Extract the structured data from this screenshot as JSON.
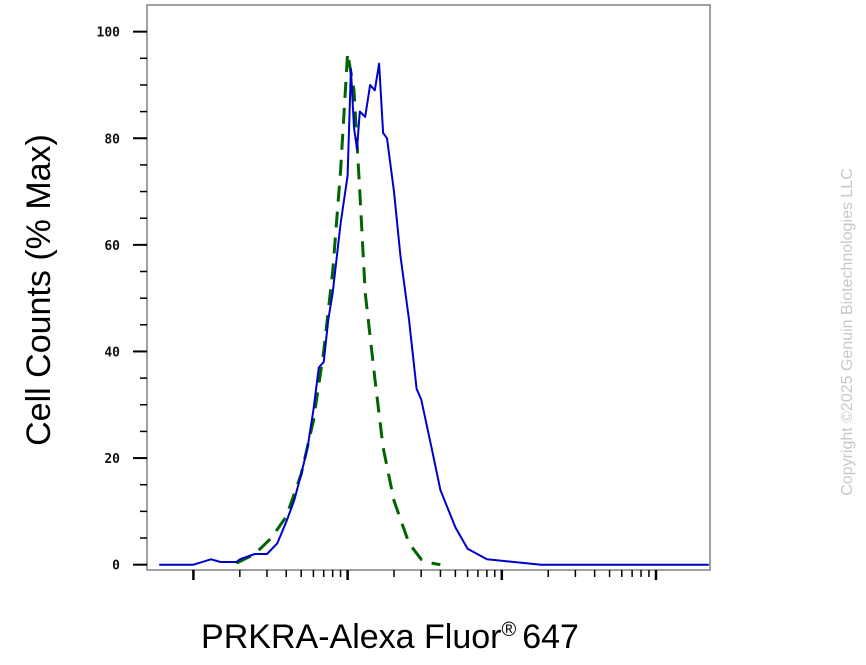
{
  "chart_data": {
    "type": "line",
    "xlabel": "PRKRA-Alexa Fluor",
    "xlabel_suffix": "647",
    "xlabel_mark": "®",
    "ylabel": "Cell Counts (% Max)",
    "x_scale": "log",
    "xlim": [
      0.5,
      2240
    ],
    "ylim": [
      -1,
      105
    ],
    "yticks": [
      0,
      20,
      40,
      60,
      80,
      100
    ],
    "ytick_labels": [
      "0",
      "20",
      "40",
      "60",
      "80",
      "100"
    ],
    "grid": false,
    "legend": "none",
    "series": [
      {
        "style": "dashed",
        "color": "#006400",
        "x": [
          1.9,
          2.5,
          3.2,
          4.0,
          5.0,
          6.0,
          7.0,
          8.0,
          9.0,
          10.0,
          11.0,
          12.0,
          13.0,
          15.0,
          17.0,
          20.0,
          25.0,
          30.0,
          35.0,
          40.0
        ],
        "y": [
          0.3,
          2,
          5,
          9,
          17,
          27,
          40,
          55,
          74,
          96,
          89,
          70,
          51,
          35,
          22,
          12,
          4,
          1,
          0.3,
          0
        ]
      },
      {
        "style": "solid",
        "color": "#0000cc",
        "x": [
          0.6,
          1.0,
          1.3,
          1.5,
          1.9,
          2.0,
          2.5,
          3.0,
          3.5,
          4.0,
          4.5,
          5.0,
          5.5,
          6.0,
          6.5,
          7.0,
          7.5,
          8.0,
          9.0,
          10.0,
          10.5,
          11.0,
          11.5,
          12.0,
          13.0,
          14.0,
          15.0,
          16.0,
          17.0,
          18.0,
          20.0,
          22.0,
          25.0,
          28.0,
          30.0,
          35.0,
          40.0,
          50.0,
          60.0,
          80.0,
          120.0,
          180.0,
          300.0,
          500.0,
          1000.0,
          2200.0
        ],
        "y": [
          0,
          0,
          1,
          0.5,
          0.5,
          1,
          2,
          2,
          4,
          8,
          12,
          17,
          22,
          29,
          37,
          38,
          46,
          51,
          64,
          73,
          93,
          82,
          78,
          85,
          84,
          90,
          89,
          94,
          81,
          80,
          70,
          58,
          46,
          33,
          31,
          22,
          14,
          7,
          3,
          1,
          0.5,
          0,
          0,
          0,
          0,
          0
        ]
      }
    ]
  },
  "watermark": "Copyright ©2025 Genuin Biotechnologies LLC"
}
